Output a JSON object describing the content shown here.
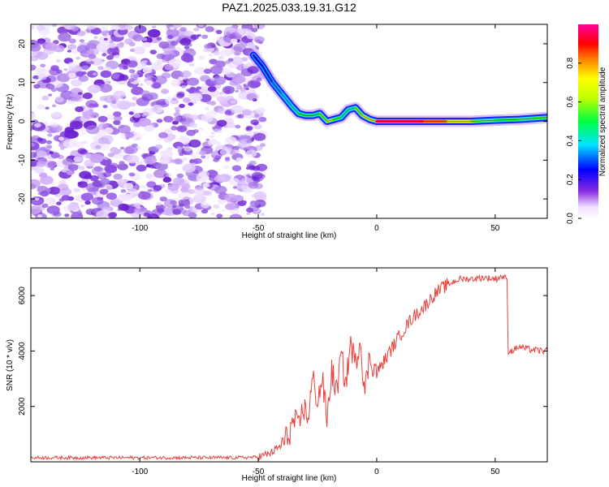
{
  "figure": {
    "title": "PAZ1.2025.033.19.31.G12"
  },
  "colors": {
    "snr_line": "#e8413e",
    "noise": "#7a2fd8",
    "frame": "#000000",
    "background": "#ffffff"
  },
  "chart_data": [
    {
      "type": "heatmap",
      "title": "",
      "xlabel": "Height of straight line (km)",
      "ylabel": "Frequency (Hz)",
      "xlim": [
        -146,
        72
      ],
      "ylim": [
        -25,
        25
      ],
      "x_ticks": [
        -100,
        -50,
        0,
        50
      ],
      "y_ticks": [
        -20,
        -10,
        0,
        10,
        20
      ],
      "grid": false,
      "colorbar": {
        "label": "Normalized spectral amplitude",
        "range": [
          0,
          1
        ],
        "ticks": [
          "0.0",
          "0.2",
          "0.4",
          "0.6",
          "0.8"
        ],
        "colormap": "rainbow (white-violet-blue-cyan-green-yellow-red-magenta)"
      },
      "series": [
        {
          "description": "dominant-frequency track",
          "x": [
            -52,
            -48,
            -44,
            -40,
            -36,
            -33,
            -30,
            -27,
            -24,
            -21,
            -18,
            -15,
            -12,
            -9,
            -6,
            -3,
            0,
            10,
            20,
            30,
            40,
            50,
            60,
            72
          ],
          "y": [
            17,
            14,
            10,
            7,
            4,
            2,
            1.5,
            1.5,
            2,
            0,
            0.5,
            1,
            3,
            3.5,
            1.5,
            0.5,
            0,
            0,
            0,
            0,
            0,
            0.3,
            0.5,
            1
          ],
          "amplitude": [
            0.15,
            0.2,
            0.25,
            0.3,
            0.35,
            0.45,
            0.55,
            0.5,
            0.45,
            0.7,
            0.6,
            0.45,
            0.4,
            0.45,
            0.75,
            0.6,
            0.95,
            1.0,
            0.95,
            0.8,
            0.6,
            0.55,
            0.5,
            0.6
          ]
        }
      ]
    },
    {
      "type": "line",
      "title": "",
      "xlabel": "Height of straight line (km)",
      "ylabel": "SNR (10 * v/v)",
      "xlim": [
        -146,
        72
      ],
      "ylim": [
        0,
        7000
      ],
      "x_ticks": [
        -100,
        -50,
        0,
        50
      ],
      "y_ticks": [
        2000,
        4000,
        6000
      ],
      "grid": false,
      "series": [
        {
          "x": [
            -146,
            -120,
            -90,
            -60,
            -50,
            -45,
            -40,
            -37,
            -35,
            -33,
            -31,
            -29,
            -27,
            -25,
            -23,
            -21,
            -19,
            -17,
            -15,
            -13,
            -11,
            -9,
            -7,
            -5,
            -3,
            0,
            5,
            10,
            15,
            20,
            25,
            30,
            35,
            40,
            45,
            50,
            53,
            55,
            55.5,
            57,
            60,
            65,
            70,
            72
          ],
          "y": [
            150,
            150,
            150,
            150,
            170,
            300,
            600,
            1000,
            1500,
            1200,
            2000,
            1600,
            3000,
            2200,
            3000,
            1500,
            3300,
            2500,
            3800,
            2800,
            4300,
            3500,
            4500,
            2500,
            3800,
            3200,
            3900,
            4600,
            5200,
            5600,
            6100,
            6400,
            6600,
            6600,
            6650,
            6600,
            6700,
            6600,
            4000,
            4000,
            4150,
            4050,
            4000,
            4000
          ]
        }
      ]
    }
  ]
}
